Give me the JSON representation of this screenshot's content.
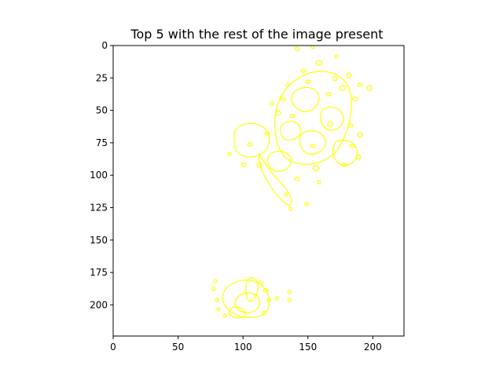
{
  "figure": {
    "title": "Top 5 with the rest of the image present",
    "background_color": "#ffffff",
    "contour_color": "#ffff00",
    "axes_color": "#000000"
  },
  "image_axes": {
    "x_range": [
      0,
      224
    ],
    "y_range": [
      0,
      224
    ],
    "y_inverted": true,
    "x_ticks": [
      {
        "value": 0,
        "label": "0"
      },
      {
        "value": 50,
        "label": "50"
      },
      {
        "value": 100,
        "label": "100"
      },
      {
        "value": 150,
        "label": "150"
      },
      {
        "value": 200,
        "label": "200"
      }
    ],
    "y_ticks": [
      {
        "value": 0,
        "label": "0"
      },
      {
        "value": 25,
        "label": "25"
      },
      {
        "value": 50,
        "label": "50"
      },
      {
        "value": 75,
        "label": "75"
      },
      {
        "value": 100,
        "label": "100"
      },
      {
        "value": 125,
        "label": "125"
      },
      {
        "value": 150,
        "label": "150"
      },
      {
        "value": 175,
        "label": "175"
      },
      {
        "value": 200,
        "label": "200"
      }
    ]
  }
}
